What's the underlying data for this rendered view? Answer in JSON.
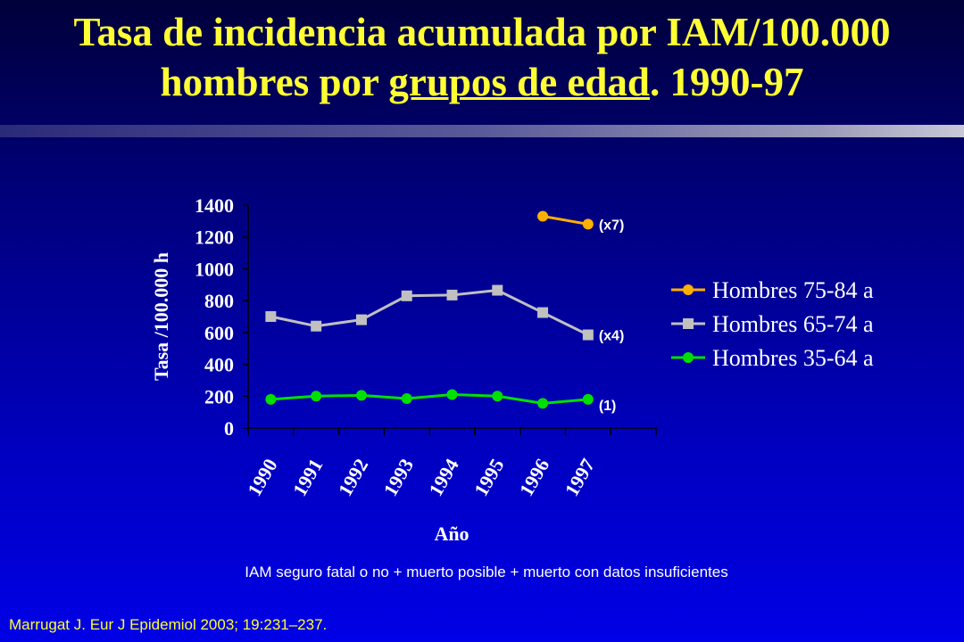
{
  "slide": {
    "title_line1": "Tasa de incidencia acumulada por IAM/100.000",
    "title_line2_pre": "hombres por ",
    "title_line2_underlined": "grupos de edad",
    "title_line2_post": ". 1990-97",
    "footnote": "IAM seguro fatal o no + muerto posible + muerto con datos insuficientes",
    "reference": "Marrugat J. Eur J Epidemiol 2003; 19:231–237."
  },
  "colors": {
    "title": "#ffff33",
    "orange_series": "#ffb000",
    "gray_series": "#c0c0c0",
    "green_series": "#00e000"
  },
  "chart_data": {
    "type": "line",
    "xlabel": "Año",
    "ylabel": "Tasa /100.000 h",
    "ylim": [
      0,
      1400
    ],
    "yticks": [
      0,
      200,
      400,
      600,
      800,
      1000,
      1200,
      1400
    ],
    "x": [
      "1990",
      "1991",
      "1992",
      "1993",
      "1994",
      "1995",
      "1996",
      "1997"
    ],
    "grid": false,
    "legend_position": "right",
    "series": [
      {
        "name": "Hombres 75-84 a",
        "color": "#ffb000",
        "marker": "circle",
        "values": [
          null,
          null,
          null,
          null,
          null,
          null,
          1330,
          1280
        ],
        "annotation": "(x7)"
      },
      {
        "name": "Hombres 65-74 a",
        "color": "#c0c0c0",
        "marker": "square",
        "values": [
          700,
          640,
          680,
          830,
          835,
          865,
          725,
          585
        ],
        "annotation": "(x4)"
      },
      {
        "name": "Hombres 35-64 a",
        "color": "#00e000",
        "marker": "circle",
        "values": [
          180,
          200,
          205,
          185,
          210,
          200,
          155,
          180
        ],
        "annotation": "(1)"
      }
    ]
  }
}
